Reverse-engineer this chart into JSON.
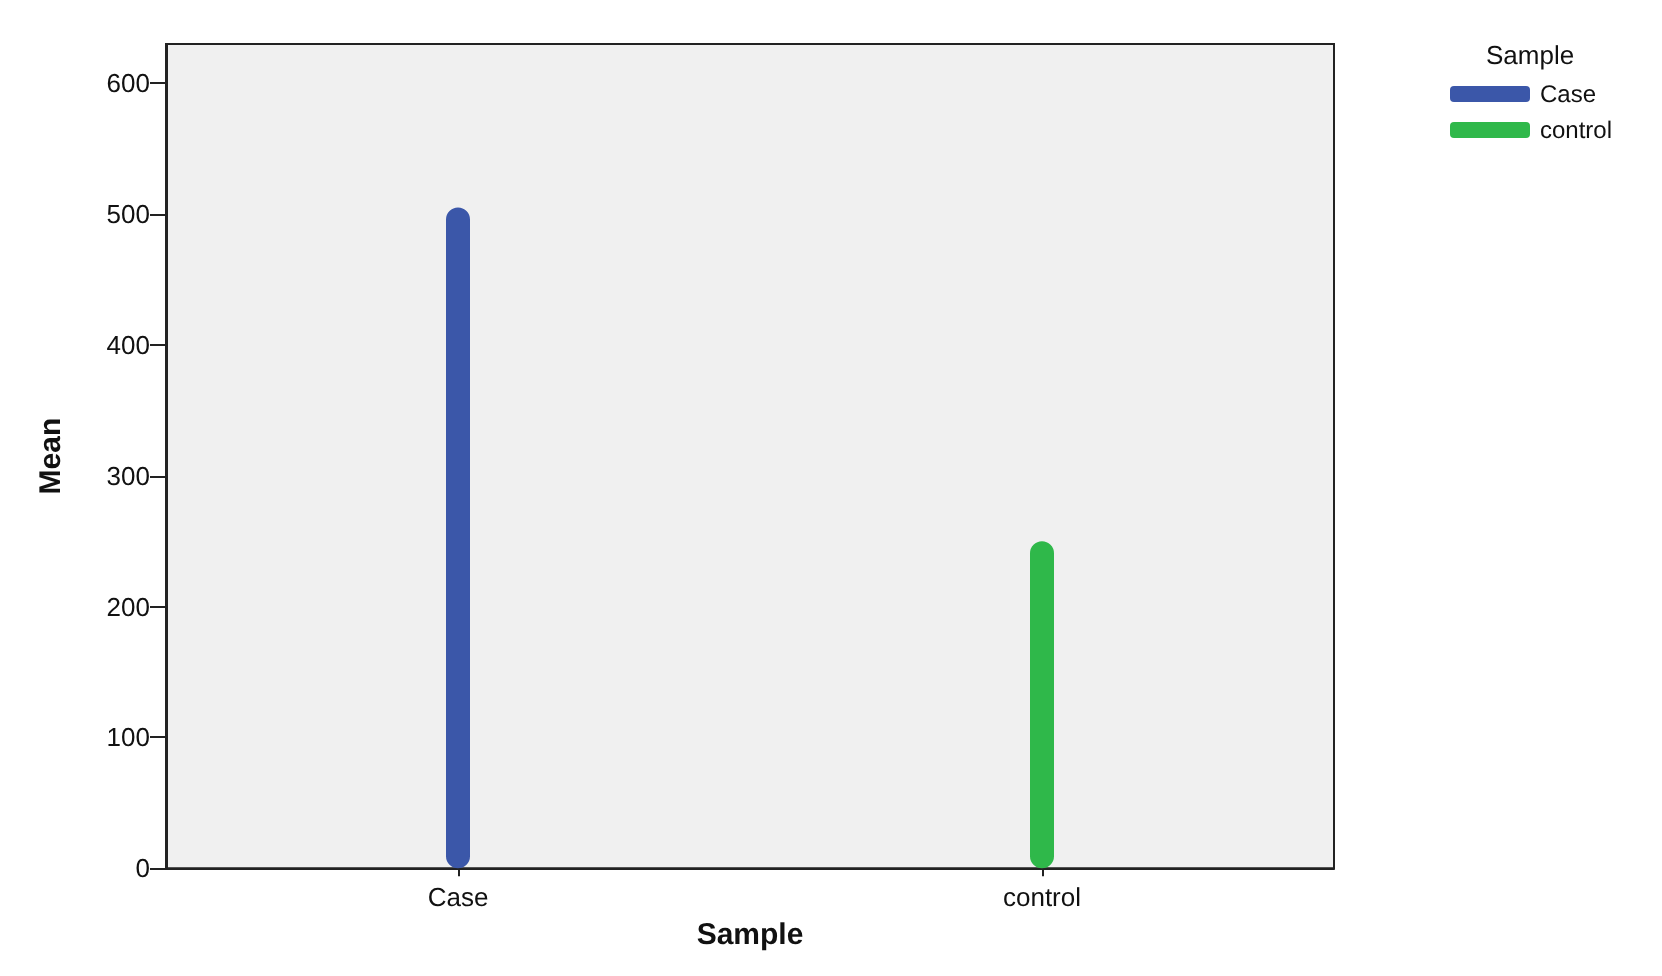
{
  "chart_data": {
    "type": "bar",
    "xlabel": "Sample",
    "ylabel": "Mean",
    "legend_title": "Sample",
    "categories": [
      "Case",
      "control"
    ],
    "series": [
      {
        "name": "Case",
        "color": "#3b57a9",
        "values": [
          505,
          null
        ]
      },
      {
        "name": "control",
        "color": "#2fb84a",
        "values": [
          null,
          250
        ]
      }
    ],
    "ylim": [
      0,
      630
    ],
    "yticks": [
      0,
      100,
      200,
      300,
      400,
      500,
      600
    ],
    "grid": false,
    "legend": "top right"
  }
}
